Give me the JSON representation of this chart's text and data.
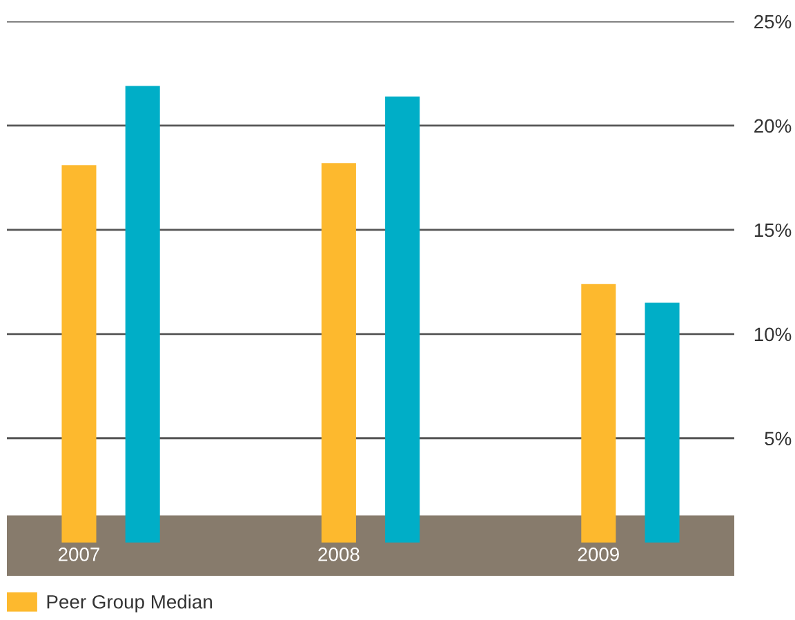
{
  "chart_data": {
    "type": "bar",
    "categories": [
      "2007",
      "2008",
      "2009"
    ],
    "series": [
      {
        "name": "Peer Group Median",
        "color": "#fdb92e",
        "values": [
          18.1,
          18.2,
          12.4
        ]
      },
      {
        "color": "#00aec7",
        "values": [
          21.9,
          21.4,
          11.5
        ]
      }
    ],
    "ylim": [
      -1.6,
      25
    ],
    "yticks": [
      {
        "value": 5,
        "label": "5%"
      },
      {
        "value": 10,
        "label": "10%"
      },
      {
        "value": 15,
        "label": "15%"
      },
      {
        "value": 20,
        "label": "20%"
      },
      {
        "value": 25,
        "label": "25%"
      }
    ],
    "grid": "y",
    "legend": "bottom left",
    "bands": [
      {
        "axis": "y",
        "from": -1.6,
        "to": 1.3,
        "color": "#877b6c"
      }
    ]
  }
}
